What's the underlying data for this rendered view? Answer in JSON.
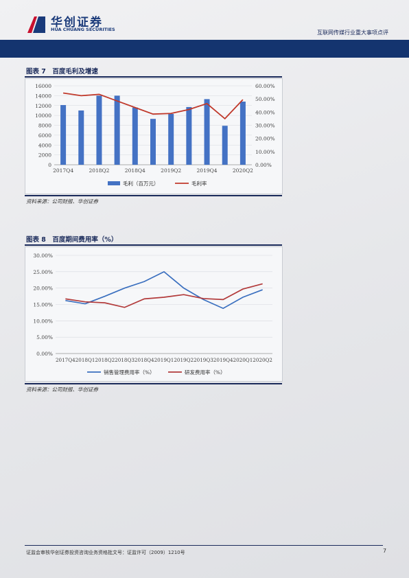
{
  "header": {
    "logo_cn": "华创证券",
    "logo_en": "HUA CHUANG SECURITIES",
    "report_tag": "互联网传媒行业重大事项点评"
  },
  "figure7": {
    "title": "图表 7　百度毛利及增速",
    "source": "资料来源：公司财报、华创证券"
  },
  "figure8": {
    "title": "图表 8　百度期间费用率（%）",
    "source": "资料来源：公司财报、华创证券"
  },
  "footer": {
    "text": "证监会审核华创证券投资咨询业务资格批文号：证监许可（2009）1210号",
    "page": "7"
  },
  "chart_data": [
    {
      "type": "bar",
      "categories": [
        "2017Q4",
        "2018Q1",
        "2018Q2",
        "2018Q3",
        "2018Q4",
        "2019Q1",
        "2019Q2",
        "2019Q3",
        "2019Q4",
        "2020Q1",
        "2020Q2"
      ],
      "x_tick_labels": [
        "2017Q4",
        "",
        "2018Q2",
        "",
        "2018Q4",
        "",
        "2019Q2",
        "",
        "2019Q4",
        "",
        "2020Q2"
      ],
      "series": [
        {
          "name": "毛利（百万元）",
          "type": "bar",
          "axis": "left",
          "color": "#4472c4",
          "values": [
            12100,
            11000,
            14000,
            14000,
            11600,
            9300,
            10300,
            11700,
            13300,
            7900,
            12800
          ]
        },
        {
          "name": "毛利率",
          "type": "line",
          "axis": "right",
          "color": "#c0392b",
          "values": [
            54.5,
            52.5,
            53.5,
            48.5,
            43.5,
            38.5,
            39.0,
            42.0,
            46.5,
            35.0,
            49.5
          ]
        }
      ],
      "y_left": {
        "min": 0,
        "max": 16000,
        "ticks": [
          "0",
          "2000",
          "4000",
          "6000",
          "8000",
          "10000",
          "12000",
          "14000",
          "16000"
        ]
      },
      "y_right": {
        "min": 0,
        "max": 60,
        "ticks": [
          "0.00%",
          "10.00%",
          "20.00%",
          "30.00%",
          "40.00%",
          "50.00%",
          "60.00%"
        ]
      },
      "legend_position": "bottom",
      "grid": true
    },
    {
      "type": "line",
      "categories": [
        "2017Q4",
        "2018Q1",
        "2018Q2",
        "2018Q3",
        "2018Q4",
        "2019Q1",
        "2019Q2",
        "2019Q3",
        "2019Q4",
        "2020Q1",
        "2020Q2"
      ],
      "series": [
        {
          "name": "销售管理费用率（%）",
          "color": "#3a6fbf",
          "values": [
            16.2,
            15.2,
            17.5,
            20.0,
            22.0,
            25.0,
            20.0,
            16.5,
            13.8,
            17.2,
            19.5
          ]
        },
        {
          "name": "研发费用率（%）",
          "color": "#b23a3a",
          "values": [
            16.7,
            15.8,
            15.5,
            14.1,
            16.7,
            17.2,
            18.0,
            16.8,
            16.5,
            19.7,
            21.3
          ]
        }
      ],
      "y": {
        "min": 0,
        "max": 30,
        "ticks": [
          "0.00%",
          "5.00%",
          "10.00%",
          "15.00%",
          "20.00%",
          "25.00%",
          "30.00%"
        ]
      },
      "legend_position": "bottom",
      "grid": true
    }
  ]
}
